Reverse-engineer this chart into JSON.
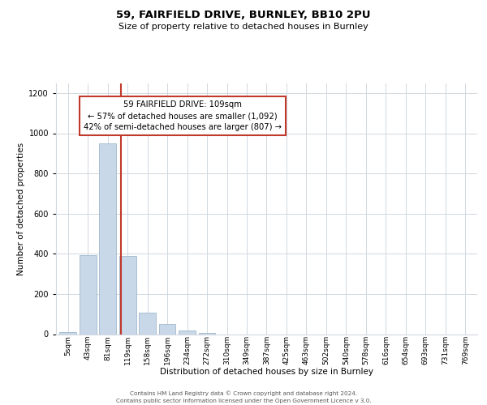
{
  "title": "59, FAIRFIELD DRIVE, BURNLEY, BB10 2PU",
  "subtitle": "Size of property relative to detached houses in Burnley",
  "xlabel": "Distribution of detached houses by size in Burnley",
  "ylabel": "Number of detached properties",
  "bar_labels": [
    "5sqm",
    "43sqm",
    "81sqm",
    "119sqm",
    "158sqm",
    "196sqm",
    "234sqm",
    "272sqm",
    "310sqm",
    "349sqm",
    "387sqm",
    "425sqm",
    "463sqm",
    "502sqm",
    "540sqm",
    "578sqm",
    "616sqm",
    "654sqm",
    "693sqm",
    "731sqm",
    "769sqm"
  ],
  "bar_heights": [
    10,
    395,
    950,
    390,
    105,
    50,
    20,
    5,
    0,
    0,
    0,
    0,
    0,
    0,
    0,
    0,
    0,
    0,
    0,
    0,
    0
  ],
  "bar_color": "#c8d8e8",
  "bar_edgecolor": "#a0b8cc",
  "property_line_x": 2.67,
  "property_line_color": "#c0392b",
  "ylim": [
    0,
    1250
  ],
  "yticks": [
    0,
    200,
    400,
    600,
    800,
    1000,
    1200
  ],
  "annotation_text": "59 FAIRFIELD DRIVE: 109sqm\n← 57% of detached houses are smaller (1,092)\n42% of semi-detached houses are larger (807) →",
  "annotation_box_color": "#c0392b",
  "footer_line1": "Contains HM Land Registry data © Crown copyright and database right 2024.",
  "footer_line2": "Contains public sector information licensed under the Open Government Licence v 3.0.",
  "bg_color": "#ffffff",
  "grid_color": "#d0d8e0",
  "title_fontsize": 9.5,
  "subtitle_fontsize": 8,
  "axis_label_fontsize": 7.5,
  "tick_fontsize": 6.5,
  "footer_fontsize": 5.2
}
